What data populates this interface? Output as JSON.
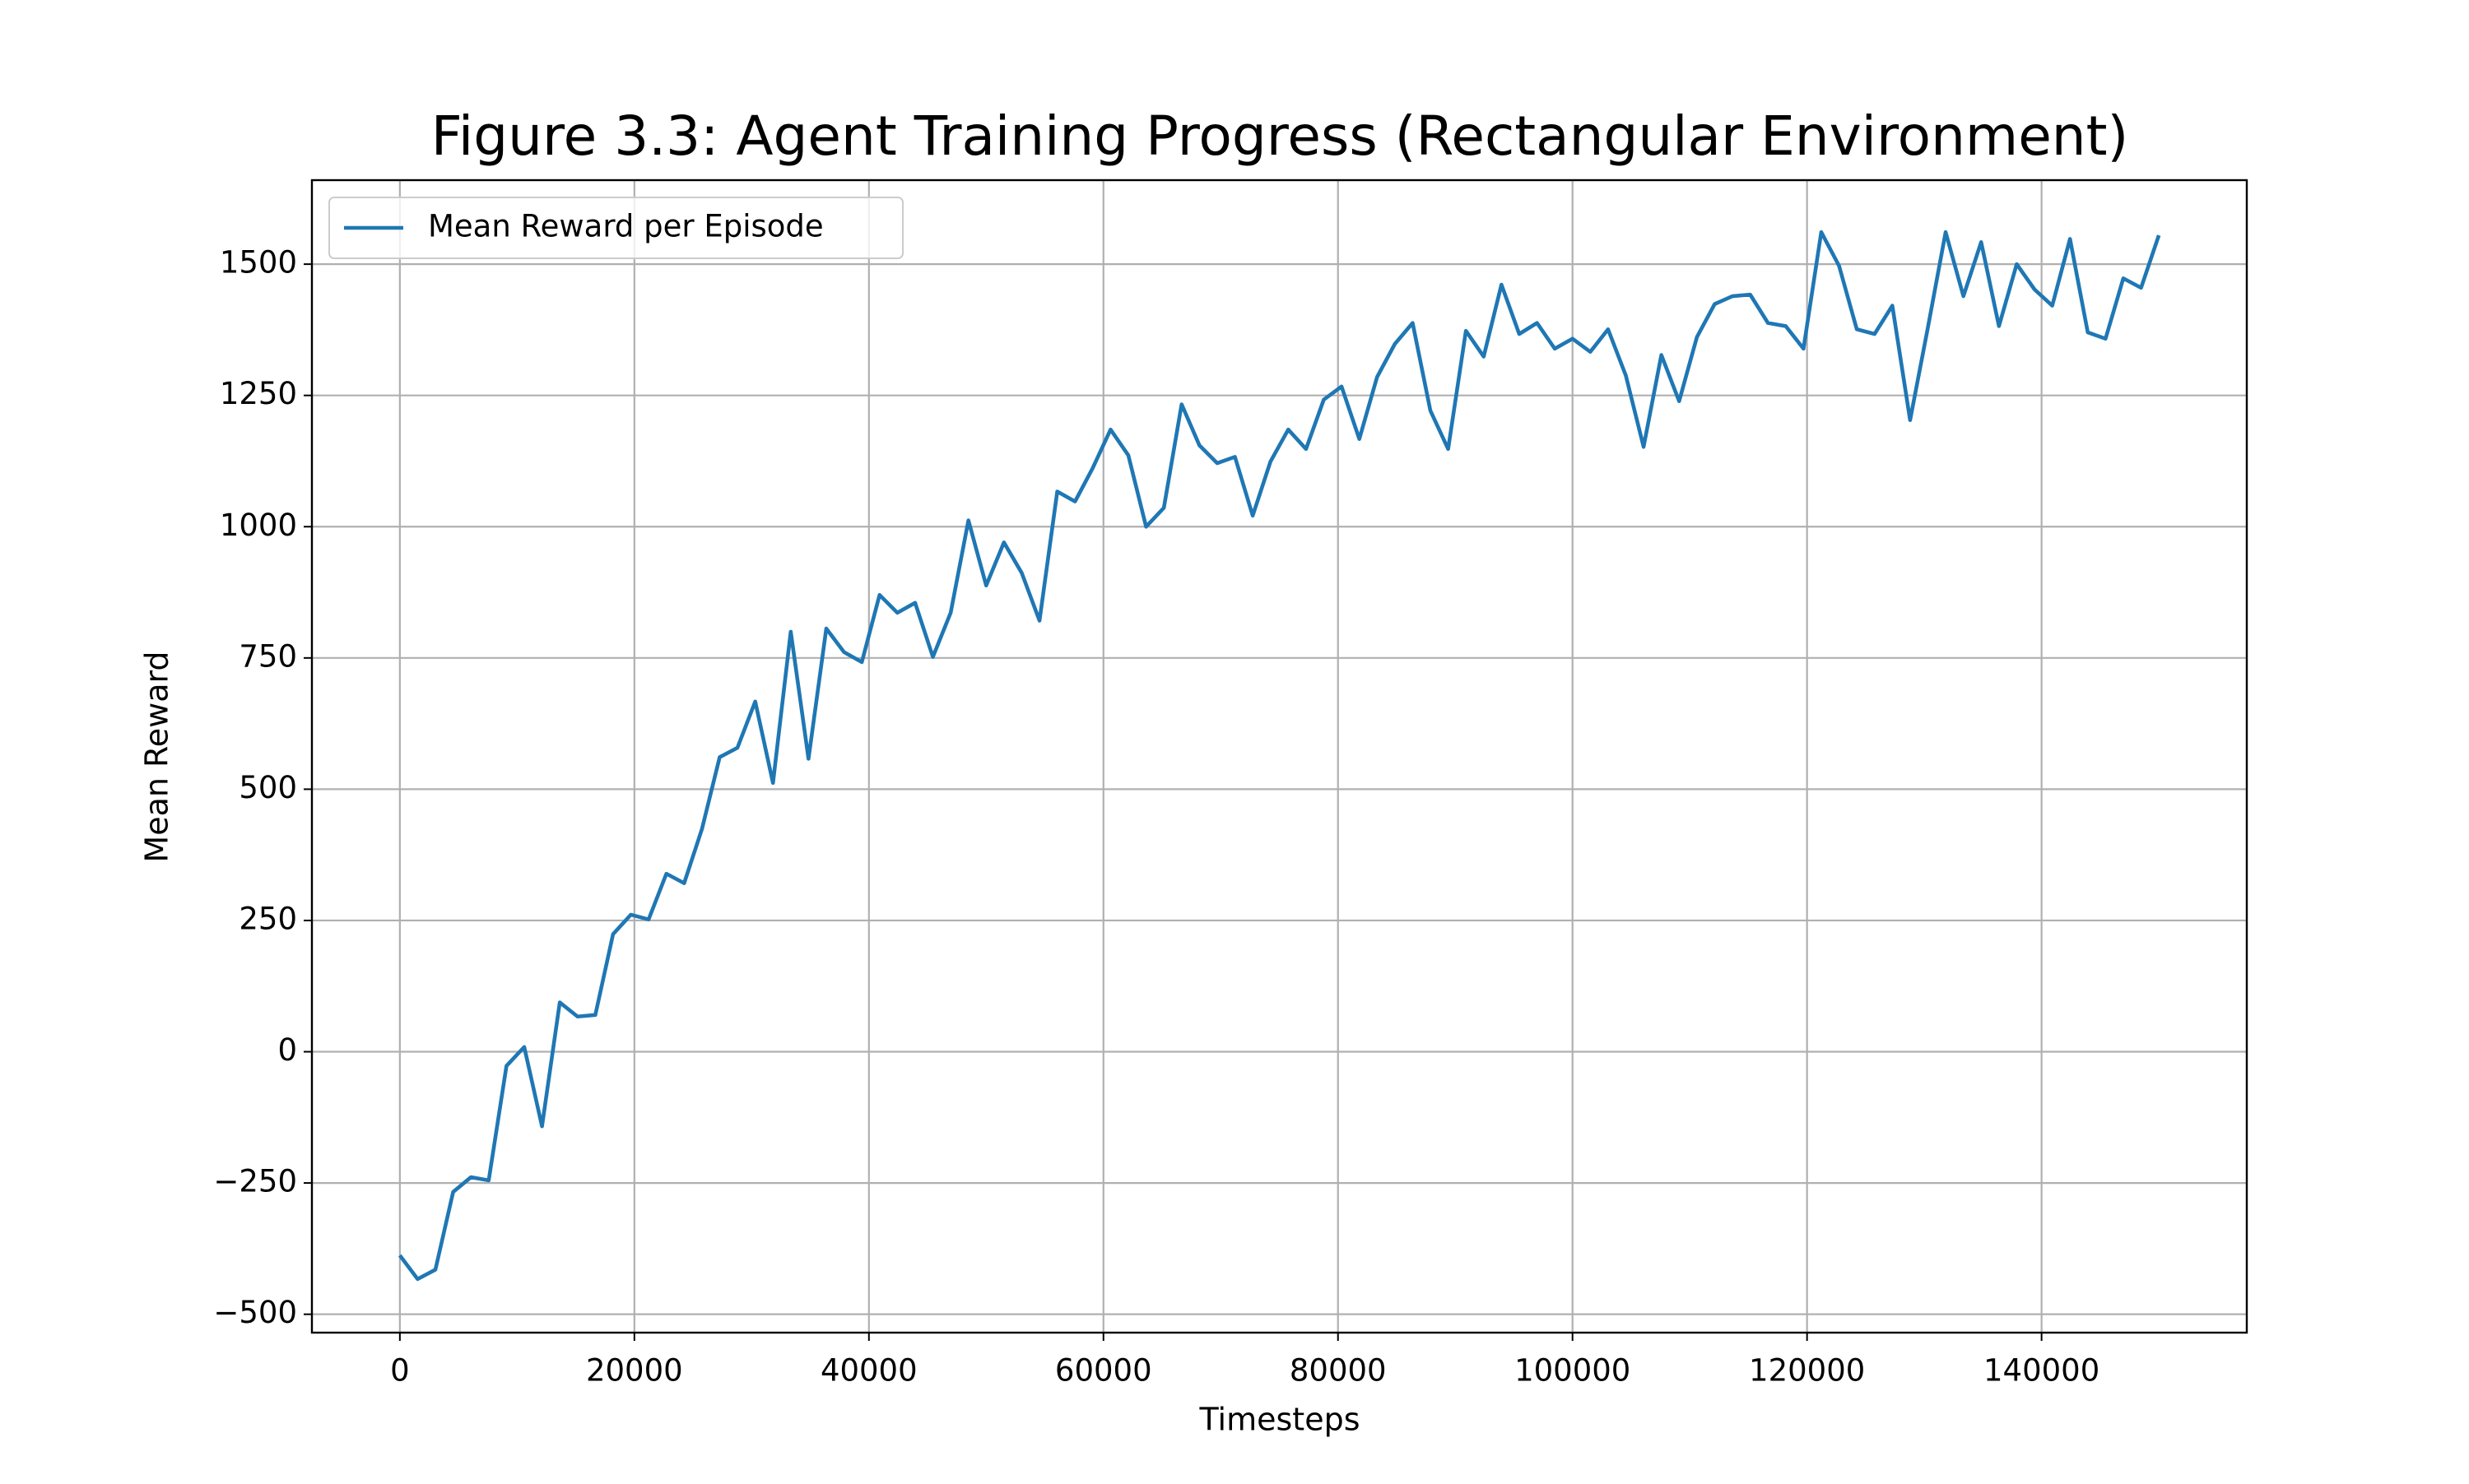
{
  "chart_data": {
    "type": "line",
    "title": "Figure 3.3: Agent Training Progress (Rectangular Environment)",
    "x_label": "Timesteps",
    "y_label": "Mean Reward",
    "xlim": [
      -7500,
      157500
    ],
    "ylim": [
      -535,
      1660
    ],
    "xticks": [
      0,
      20000,
      40000,
      60000,
      80000,
      100000,
      120000,
      140000
    ],
    "yticks": [
      {
        "value": -500,
        "label": "−500"
      },
      {
        "value": -250,
        "label": "−250"
      },
      0,
      250,
      500,
      750,
      1000,
      1250,
      1500
    ],
    "grid": true,
    "legend_loc": "upper left",
    "x": [
      0,
      1515,
      3030,
      4545,
      6061,
      7576,
      9091,
      10606,
      12121,
      13636,
      15152,
      16667,
      18182,
      19697,
      21212,
      22727,
      24242,
      25758,
      27273,
      28788,
      30303,
      31818,
      33333,
      34848,
      36364,
      37879,
      39394,
      40909,
      42424,
      43939,
      45455,
      46970,
      48485,
      50000,
      51515,
      53030,
      54545,
      56061,
      57576,
      59091,
      60606,
      62121,
      63636,
      65152,
      66667,
      68182,
      69697,
      71212,
      72727,
      74242,
      75758,
      77273,
      78788,
      80303,
      81818,
      83333,
      84848,
      86364,
      87879,
      89394,
      90909,
      92424,
      93939,
      95455,
      96970,
      98485,
      100000,
      101515,
      103030,
      104545,
      106061,
      107576,
      109091,
      110606,
      112121,
      113636,
      115152,
      116667,
      118182,
      119697,
      121212,
      122727,
      124242,
      125758,
      127273,
      128788,
      130303,
      131818,
      133333,
      134848,
      136364,
      137879,
      139394,
      140909,
      142424,
      143939,
      145455,
      146970,
      148485,
      150000
    ],
    "series": [
      {
        "name": "Mean Reward per Episode",
        "color": "#1f77b4",
        "values": [
          -388,
          -433,
          -415,
          -267,
          -239,
          -245,
          -27,
          9,
          -142,
          94,
          67,
          70,
          224,
          261,
          252,
          339,
          321,
          424,
          561,
          579,
          667,
          512,
          800,
          558,
          806,
          761,
          742,
          870,
          836,
          855,
          752,
          836,
          1012,
          888,
          970,
          912,
          821,
          1067,
          1048,
          1112,
          1185,
          1136,
          1000,
          1036,
          1233,
          1155,
          1121,
          1133,
          1021,
          1124,
          1185,
          1148,
          1242,
          1267,
          1167,
          1285,
          1348,
          1388,
          1221,
          1148,
          1373,
          1324,
          1461,
          1367,
          1388,
          1339,
          1358,
          1333,
          1376,
          1288,
          1152,
          1327,
          1239,
          1361,
          1424,
          1439,
          1442,
          1388,
          1382,
          1339,
          1561,
          1497,
          1376,
          1367,
          1421,
          1203,
          1379,
          1561,
          1439,
          1542,
          1382,
          1500,
          1452,
          1421,
          1548,
          1370,
          1358,
          1473,
          1455,
          1555
        ]
      }
    ]
  }
}
